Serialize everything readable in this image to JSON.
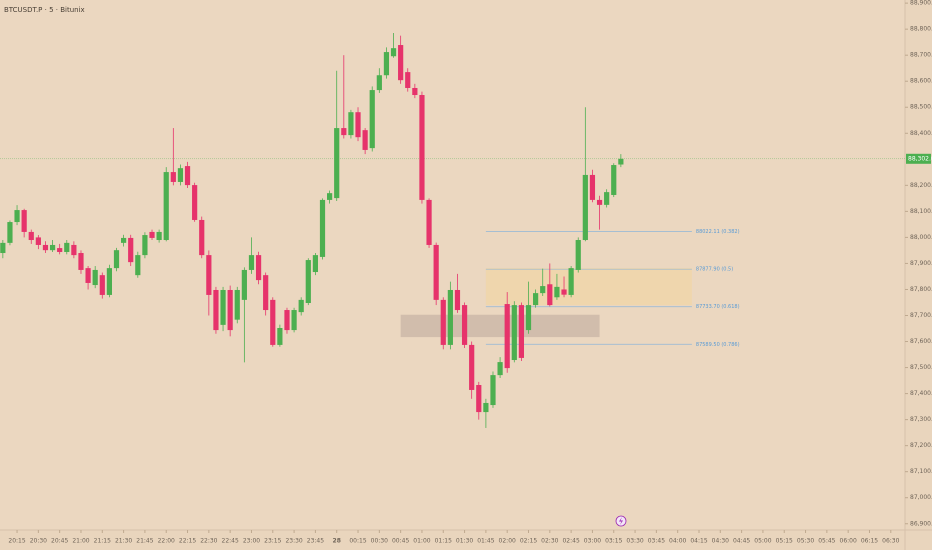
{
  "chart_data": {
    "type": "candlestick",
    "title": "BTCUSDT.P · 5 · Bitunix",
    "up_color": "#4caf50",
    "down_color": "#e6336b",
    "open": [
      87940,
      87979,
      88059,
      88105,
      88021,
      88000,
      87971,
      87951,
      87959,
      87944,
      87971,
      87940,
      87882,
      87817,
      87855,
      87779,
      87882,
      87979,
      87998,
      87855,
      87932,
      88021,
      87990,
      87990,
      88251,
      88213,
      88274,
      88201,
      88067,
      87932,
      87798,
      87664,
      87798,
      87684,
      87760,
      87875,
      87932,
      87855,
      87760,
      87587,
      87721,
      87644,
      87713,
      87748,
      87867,
      87925,
      88144,
      88151,
      88420,
      88393,
      88481,
      88412,
      88343,
      88566,
      88623,
      88696,
      88739,
      88635,
      88574,
      88547,
      88144,
      87971,
      87760,
      87587,
      87798,
      87740,
      87587,
      87433,
      87329,
      87356,
      87471,
      87744,
      87529,
      87740,
      87644,
      87740,
      87786,
      87820,
      87770,
      87800,
      87779,
      87875,
      87990,
      88240,
      88144,
      88125,
      88163,
      88280
    ],
    "high": [
      87990,
      88065,
      88124,
      88110,
      88030,
      88009,
      87985,
      87990,
      87975,
      87990,
      87985,
      87950,
      87890,
      87890,
      87865,
      87895,
      87960,
      88010,
      88010,
      87945,
      88020,
      88030,
      88030,
      88270,
      88420,
      88280,
      88290,
      88210,
      88080,
      87950,
      87810,
      87810,
      87815,
      87810,
      87885,
      88000,
      87945,
      87865,
      87770,
      87665,
      87730,
      87730,
      87770,
      87920,
      87940,
      88150,
      88180,
      88640,
      88700,
      88490,
      88500,
      88420,
      88580,
      88650,
      88730,
      88785,
      88775,
      88650,
      88590,
      88560,
      88150,
      87980,
      87770,
      87830,
      87860,
      87750,
      87600,
      87445,
      87380,
      87485,
      87540,
      87790,
      87755,
      87750,
      87830,
      87800,
      87880,
      87900,
      87860,
      87850,
      87890,
      88000,
      88500,
      88260,
      88160,
      88185,
      88285,
      88320
    ],
    "low": [
      87920,
      87970,
      88047,
      88000,
      87975,
      87955,
      87940,
      87944,
      87935,
      87935,
      87920,
      87860,
      87800,
      87805,
      87765,
      87770,
      87870,
      87965,
      87890,
      87845,
      87920,
      87990,
      87980,
      87985,
      88200,
      88200,
      88190,
      88060,
      87920,
      87700,
      87630,
      87640,
      87620,
      87670,
      87520,
      87860,
      87820,
      87700,
      87580,
      87580,
      87630,
      87635,
      87700,
      87740,
      87855,
      87915,
      88130,
      88140,
      88380,
      88380,
      88370,
      88320,
      88330,
      88555,
      88610,
      88690,
      88590,
      88560,
      88535,
      88130,
      87960,
      87740,
      87570,
      87570,
      87710,
      87575,
      87380,
      87300,
      87268,
      87345,
      87460,
      87480,
      87520,
      87525,
      87630,
      87730,
      87775,
      87735,
      87760,
      87770,
      87770,
      87865,
      87985,
      88135,
      88030,
      88115,
      88155,
      88270
    ],
    "close": [
      87979,
      88059,
      88105,
      88021,
      87990,
      87971,
      87951,
      87971,
      87944,
      87979,
      87932,
      87875,
      87825,
      87875,
      87779,
      87882,
      87951,
      87998,
      87905,
      87932,
      88009,
      87998,
      88021,
      88251,
      88213,
      88266,
      88201,
      88067,
      87932,
      87779,
      87644,
      87798,
      87644,
      87798,
      87875,
      87932,
      87836,
      87721,
      87587,
      87652,
      87644,
      87721,
      87760,
      87913,
      87932,
      88144,
      88170,
      88420,
      88393,
      88481,
      88385,
      88336,
      88566,
      88623,
      88712,
      88727,
      88604,
      88574,
      88547,
      88144,
      87971,
      87760,
      87587,
      87798,
      87721,
      87587,
      87414,
      87329,
      87364,
      87471,
      87521,
      87498,
      87740,
      87537,
      87740,
      87786,
      87813,
      87740,
      87810,
      87780,
      87882,
      87990,
      88240,
      88144,
      88125,
      88174,
      88278,
      88302
    ],
    "ylim": [
      86876,
      88912
    ],
    "yticks": [
      {
        "value": 86900,
        "label": "86,900.0"
      },
      {
        "value": 87000,
        "label": "87,000.0"
      },
      {
        "value": 87100,
        "label": "87,100.0"
      },
      {
        "value": 87200,
        "label": "87,200.0"
      },
      {
        "value": 87300,
        "label": "87,300.0"
      },
      {
        "value": 87400,
        "label": "87,400.0"
      },
      {
        "value": 87500,
        "label": "87,500.0"
      },
      {
        "value": 87600,
        "label": "87,600.0"
      },
      {
        "value": 87700,
        "label": "87,700.0"
      },
      {
        "value": 87800,
        "label": "87,800.0"
      },
      {
        "value": 87900,
        "label": "87,900.0"
      },
      {
        "value": 88000,
        "label": "88,000.0"
      },
      {
        "value": 88100,
        "label": "88,100.0"
      },
      {
        "value": 88200,
        "label": "88,200.0"
      },
      {
        "value": 88400,
        "label": "88,400.0"
      },
      {
        "value": 88500,
        "label": "88,500.0"
      },
      {
        "value": 88600,
        "label": "88,600.0"
      },
      {
        "value": 88700,
        "label": "88,700.0"
      },
      {
        "value": 88800,
        "label": "88,800.0"
      },
      {
        "value": 88900,
        "label": "88,900.0"
      }
    ],
    "xlim": [
      -0.4,
      127
    ],
    "xticks": [
      {
        "value": 2,
        "label": "20:15"
      },
      {
        "value": 5,
        "label": "20:30"
      },
      {
        "value": 8,
        "label": "20:45"
      },
      {
        "value": 11,
        "label": "21:00"
      },
      {
        "value": 14,
        "label": "21:15"
      },
      {
        "value": 17,
        "label": "21:30"
      },
      {
        "value": 20,
        "label": "21:45"
      },
      {
        "value": 23,
        "label": "22:00"
      },
      {
        "value": 26,
        "label": "22:15"
      },
      {
        "value": 29,
        "label": "22:30"
      },
      {
        "value": 32,
        "label": "22:45"
      },
      {
        "value": 35,
        "label": "23:00"
      },
      {
        "value": 38,
        "label": "23:15"
      },
      {
        "value": 41,
        "label": "23:30"
      },
      {
        "value": 44,
        "label": "23:45"
      },
      {
        "value": 47,
        "label": "28"
      },
      {
        "value": 50,
        "label": "00:15"
      },
      {
        "value": 53,
        "label": "00:30"
      },
      {
        "value": 56,
        "label": "00:45"
      },
      {
        "value": 59,
        "label": "01:00"
      },
      {
        "value": 62,
        "label": "01:15"
      },
      {
        "value": 65,
        "label": "01:30"
      },
      {
        "value": 68,
        "label": "01:45"
      },
      {
        "value": 71,
        "label": "02:00"
      },
      {
        "value": 74,
        "label": "02:15"
      },
      {
        "value": 77,
        "label": "02:30"
      },
      {
        "value": 80,
        "label": "02:45"
      },
      {
        "value": 83,
        "label": "03:00"
      },
      {
        "value": 86,
        "label": "03:15"
      },
      {
        "value": 89,
        "label": "03:30"
      },
      {
        "value": 92,
        "label": "03:45"
      },
      {
        "value": 95,
        "label": "04:00"
      },
      {
        "value": 98,
        "label": "04:15"
      },
      {
        "value": 101,
        "label": "04:30"
      },
      {
        "value": 104,
        "label": "04:45"
      },
      {
        "value": 107,
        "label": "05:00"
      },
      {
        "value": 110,
        "label": "05:15"
      },
      {
        "value": 113,
        "label": "05:30"
      },
      {
        "value": 116,
        "label": "05:45"
      },
      {
        "value": 119,
        "label": "06:00"
      },
      {
        "value": 122,
        "label": "06:15"
      },
      {
        "value": 125,
        "label": "06:30"
      }
    ],
    "last_price": {
      "value": 88302,
      "label": "88,302.0",
      "color": "#4caf50"
    },
    "levels": [
      {
        "value": 88022.11,
        "label": "88022.11 (0.382)"
      },
      {
        "value": 87877.9,
        "label": "87877.90 (0.5)"
      },
      {
        "value": 87733.7,
        "label": "87733.70 (0.618)"
      },
      {
        "value": 87589.5,
        "label": "87589.50 (0.786)"
      }
    ],
    "level_color": "#8fb6d8",
    "zones": [
      {
        "x": [
          56,
          84
        ],
        "y": [
          87617,
          87703
        ],
        "color": "#cbb7a6"
      },
      {
        "x": [
          68,
          97
        ],
        "y": [
          87740,
          87882
        ],
        "color": "#f0d6a8"
      }
    ]
  }
}
